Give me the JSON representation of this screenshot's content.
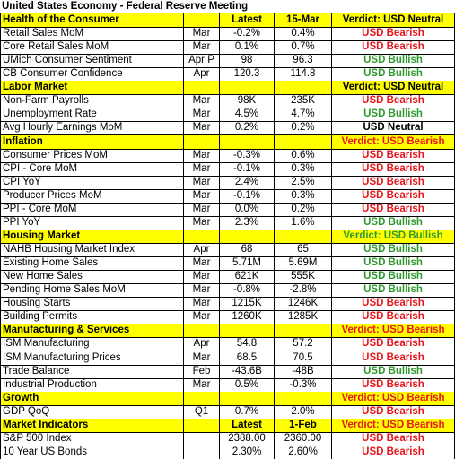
{
  "title": "United States Economy - Federal Reserve Meeting",
  "sections": [
    {
      "title": "Health of the Consumer",
      "columns": [
        "Latest",
        "15-Mar"
      ],
      "verdict": "Verdict: USD Neutral",
      "verdict_color": "#000000",
      "rows": [
        {
          "name": "Retail Sales MoM",
          "period": "Mar",
          "latest": "-0.2%",
          "previous": "0.4%",
          "verdict": "USD Bearish",
          "verdict_color": "#e8141b"
        },
        {
          "name": "Core Retail Sales MoM",
          "period": "Mar",
          "latest": "0.1%",
          "previous": "0.7%",
          "verdict": "USD Bearish",
          "verdict_color": "#e8141b"
        },
        {
          "name": "UMich Consumer Sentiment",
          "period": "Apr P",
          "latest": "98",
          "previous": "96.3",
          "verdict": "USD Bullish",
          "verdict_color": "#2e9a2e"
        },
        {
          "name": "CB Consumer Confidence",
          "period": "Apr",
          "latest": "120.3",
          "previous": "114.8",
          "verdict": "USD Bullish",
          "verdict_color": "#2e9a2e"
        }
      ]
    },
    {
      "title": "Labor Market",
      "verdict": "Verdict: USD Neutral",
      "verdict_color": "#000000",
      "rows": [
        {
          "name": "Non-Farm Payrolls",
          "period": "Mar",
          "latest": "98K",
          "previous": "235K",
          "verdict": "USD Bearish",
          "verdict_color": "#e8141b"
        },
        {
          "name": "Unemployment Rate",
          "period": "Mar",
          "latest": "4.5%",
          "previous": "4.7%",
          "verdict": "USD Bullish",
          "verdict_color": "#2e9a2e"
        },
        {
          "name": "Avg Hourly Earnings MoM",
          "period": "Mar",
          "latest": "0.2%",
          "previous": "0.2%",
          "verdict": "USD Neutral",
          "verdict_color": "#000000"
        }
      ]
    },
    {
      "title": "Inflation",
      "verdict": "Verdict: USD Bearish",
      "verdict_color": "#e8141b",
      "rows": [
        {
          "name": "Consumer Prices MoM",
          "period": "Mar",
          "latest": "-0.3%",
          "previous": "0.6%",
          "verdict": "USD Bearish",
          "verdict_color": "#e8141b"
        },
        {
          "name": "CPI - Core MoM",
          "period": "Mar",
          "latest": "-0.1%",
          "previous": "0.3%",
          "verdict": "USD Bearish",
          "verdict_color": "#e8141b"
        },
        {
          "name": "CPI YoY",
          "period": "Mar",
          "latest": "2.4%",
          "previous": "2.5%",
          "verdict": "USD Bearish",
          "verdict_color": "#e8141b"
        },
        {
          "name": "Producer Prices MoM",
          "period": "Mar",
          "latest": "-0.1%",
          "previous": "0.3%",
          "verdict": "USD Bearish",
          "verdict_color": "#e8141b"
        },
        {
          "name": "PPI - Core MoM",
          "period": "Mar",
          "latest": "0.0%",
          "previous": "0.2%",
          "verdict": "USD Bearish",
          "verdict_color": "#e8141b"
        },
        {
          "name": "PPI YoY",
          "period": "Mar",
          "latest": "2.3%",
          "previous": "1.6%",
          "verdict": "USD Bullish",
          "verdict_color": "#2e9a2e"
        }
      ]
    },
    {
      "title": "Housing Market",
      "verdict": "Verdict: USD Bullish",
      "verdict_color": "#2e9a2e",
      "rows": [
        {
          "name": "NAHB Housing Market Index",
          "period": "Apr",
          "latest": "68",
          "previous": "65",
          "verdict": "USD Bullish",
          "verdict_color": "#2e9a2e"
        },
        {
          "name": "Existing Home Sales",
          "period": "Mar",
          "latest": "5.71M",
          "previous": "5.69M",
          "verdict": "USD Bullish",
          "verdict_color": "#2e9a2e"
        },
        {
          "name": "New Home Sales",
          "period": "Mar",
          "latest": "621K",
          "previous": "555K",
          "verdict": "USD Bullish",
          "verdict_color": "#2e9a2e"
        },
        {
          "name": "Pending Home Sales MoM",
          "period": "Mar",
          "latest": "-0.8%",
          "previous": "-2.8%",
          "verdict": "USD Bullish",
          "verdict_color": "#2e9a2e"
        },
        {
          "name": "Housing Starts",
          "period": "Mar",
          "latest": "1215K",
          "previous": "1246K",
          "verdict": "USD Bearish",
          "verdict_color": "#e8141b"
        },
        {
          "name": "Building Permits",
          "period": "Mar",
          "latest": "1260K",
          "previous": "1285K",
          "verdict": "USD Bearish",
          "verdict_color": "#e8141b"
        }
      ]
    },
    {
      "title": "Manufacturing & Services",
      "verdict": "Verdict: USD Bearish",
      "verdict_color": "#e8141b",
      "rows": [
        {
          "name": "ISM Manufacturing",
          "period": "Apr",
          "latest": "54.8",
          "previous": "57.2",
          "verdict": "USD Bearish",
          "verdict_color": "#e8141b"
        },
        {
          "name": "ISM Manufacturing Prices",
          "period": "Mar",
          "latest": "68.5",
          "previous": "70.5",
          "verdict": "USD Bearish",
          "verdict_color": "#e8141b"
        },
        {
          "name": "Trade Balance",
          "period": "Feb",
          "latest": "-43.6B",
          "previous": "-48B",
          "verdict": "USD Bullish",
          "verdict_color": "#2e9a2e"
        },
        {
          "name": "Industrial Production",
          "period": "Mar",
          "latest": "0.5%",
          "previous": "-0.3%",
          "verdict": "USD Bearish",
          "verdict_color": "#e8141b"
        }
      ]
    },
    {
      "title": "Growth",
      "verdict": "Verdict: USD Bearish",
      "verdict_color": "#e8141b",
      "rows": [
        {
          "name": "GDP QoQ",
          "period": "Q1",
          "latest": "0.7%",
          "previous": "2.0%",
          "verdict": "USD Bearish",
          "verdict_color": "#e8141b"
        }
      ]
    },
    {
      "title": "Market Indicators",
      "columns": [
        "Latest",
        "1-Feb"
      ],
      "verdict": "Verdict: USD Bearish",
      "verdict_color": "#e8141b",
      "rows": [
        {
          "name": "S&P 500 Index",
          "latest": "2388.00",
          "previous": "2360.00",
          "verdict": "USD Bearish",
          "verdict_color": "#e8141b"
        },
        {
          "name": "10 Year US Bonds",
          "latest": "2.30%",
          "previous": "2.60%",
          "verdict": "USD Bearish",
          "verdict_color": "#e8141b"
        }
      ]
    }
  ]
}
